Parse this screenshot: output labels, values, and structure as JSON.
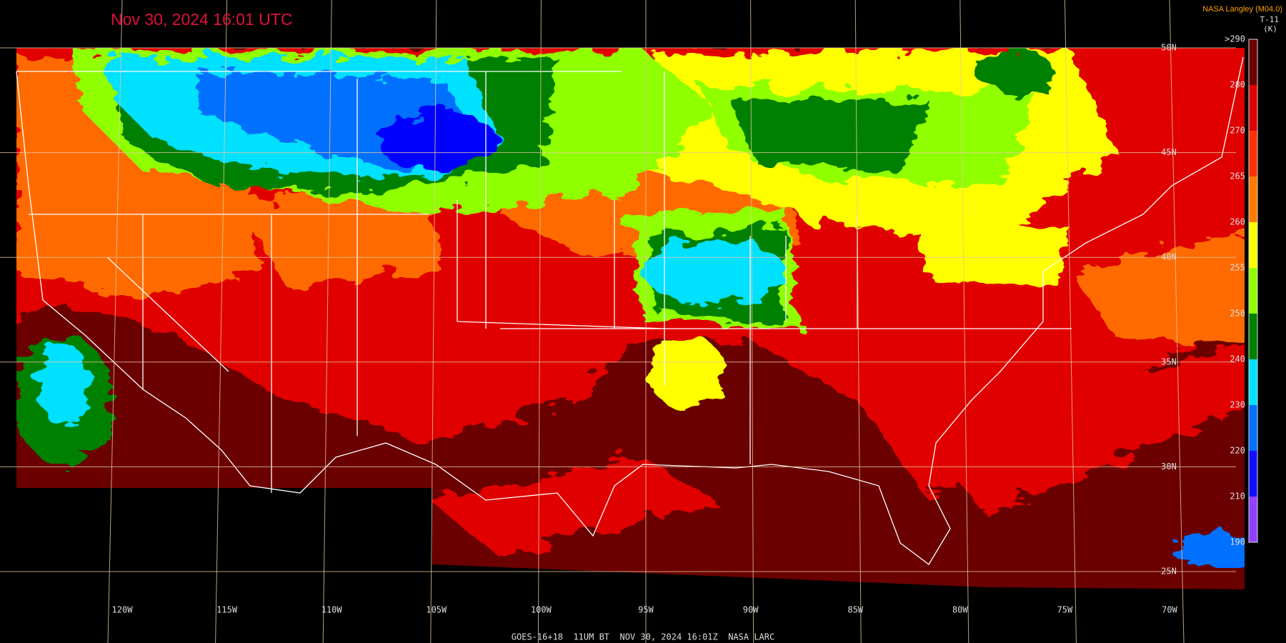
{
  "header": {
    "title": "Nov 30, 2024 16:01 UTC",
    "credit": "NASA Langley (M04.0)",
    "product": "T-11",
    "unit": "(K)"
  },
  "colorbar": {
    "labels": [
      ">290",
      "280",
      "270",
      "265",
      "260",
      "255",
      "250",
      "240",
      "230",
      "220",
      "210",
      "190"
    ],
    "colors": [
      "#6b0000",
      "#e00000",
      "#ff3000",
      "#ff7a00",
      "#ffff00",
      "#90ff00",
      "#008000",
      "#00e0ff",
      "#0070ff",
      "#1010ff",
      "#9040ff"
    ]
  },
  "longitudes": [
    "120W",
    "115W",
    "110W",
    "105W",
    "100W",
    "95W",
    "90W",
    "85W",
    "80W",
    "75W",
    "70W"
  ],
  "latitudes": [
    "50N",
    "45N",
    "40N",
    "35N",
    "30N",
    "25N"
  ],
  "footer": "GOES-16+18  11UM BT  NOV 30, 2024 16:01Z  NASA LARC"
}
